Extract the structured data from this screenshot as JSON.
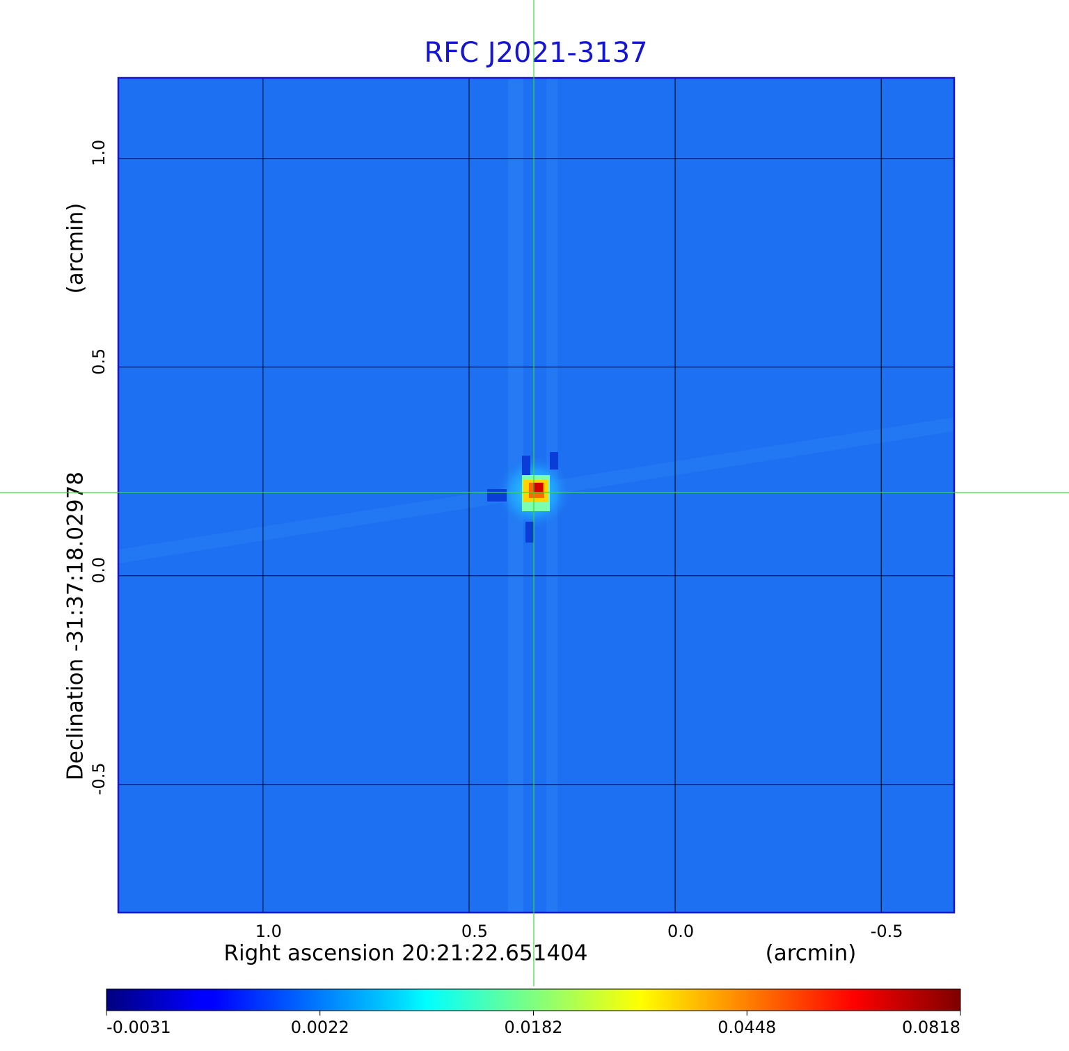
{
  "chart_data": {
    "type": "image",
    "title": "RFC J2021-3137",
    "x_label": "Right ascension  20:21:22.651404",
    "x_unit": "(arcmin)",
    "y_label": "Declination  -31:37:18.02978",
    "y_unit": "(arcmin)",
    "xlim": [
      1.351,
      -0.677
    ],
    "ylim": [
      -0.807,
      1.193
    ],
    "xticks": [
      {
        "value": 1,
        "label": "1.0"
      },
      0.5,
      {
        "value": 0,
        "label": "0.0"
      },
      -0.5
    ],
    "yticks": [
      -0.5,
      {
        "value": 0,
        "label": "0.0"
      },
      0.5,
      {
        "value": 1,
        "label": "1.0"
      }
    ],
    "grid": true,
    "colormap": "jet",
    "colorbar_ticks": [
      -0.0031,
      0.0022,
      0.0182,
      0.0448,
      0.0818
    ]
  }
}
